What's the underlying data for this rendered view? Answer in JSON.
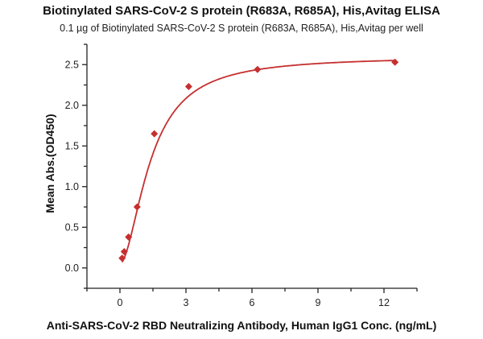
{
  "chart_data": {
    "type": "scatter",
    "title": "Biotinylated SARS-CoV-2 S protein (R683A, R685A), His,Avitag ELISA",
    "subtitle": "0.1 µg of Biotinylated SARS-CoV-2 S protein (R683A, R685A), His,Avitag per well",
    "xlabel": "Anti-SARS-CoV-2 RBD Neutralizing Antibody, Human IgG1 Conc. (ng/mL)",
    "ylabel": "Mean Abs.(OD450)",
    "xlim": [
      -1.5,
      13.5
    ],
    "ylim": [
      -0.25,
      2.75
    ],
    "xticks": [
      0,
      3,
      6,
      9,
      12
    ],
    "xtick_labels": [
      "0",
      "3",
      "6",
      "9",
      "12"
    ],
    "xminor": [
      -1.5,
      1.5,
      4.5,
      7.5,
      10.5,
      13.5
    ],
    "yticks": [
      0,
      0.5,
      1.0,
      1.5,
      2.0,
      2.5
    ],
    "ytick_labels": [
      "0.0",
      "0.5",
      "1.0",
      "1.5",
      "2.0",
      "2.5"
    ],
    "yminor": [
      -0.25,
      0.25,
      0.75,
      1.25,
      1.75,
      2.25,
      2.75
    ],
    "grid": false,
    "color": "#c62f2f",
    "series": [
      {
        "name": "data",
        "x": [
          0.098,
          0.195,
          0.391,
          0.781,
          1.563,
          3.125,
          6.25,
          12.5
        ],
        "y": [
          0.12,
          0.2,
          0.38,
          0.75,
          1.65,
          2.23,
          2.44,
          2.53
        ]
      }
    ],
    "fit": {
      "model": "4PL",
      "bottom": 0.05,
      "top": 2.6,
      "ec50": 1.4,
      "hill": 1.8
    }
  }
}
